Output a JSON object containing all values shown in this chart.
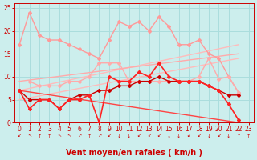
{
  "bg_color": "#cceeed",
  "grid_color": "#aadddd",
  "xlabel": "Vent moyen/en rafales ( km/h )",
  "xlim": [
    -0.5,
    23.5
  ],
  "ylim": [
    0,
    26
  ],
  "yticks": [
    0,
    5,
    10,
    15,
    20,
    25
  ],
  "xticks": [
    0,
    1,
    2,
    3,
    4,
    5,
    6,
    7,
    8,
    9,
    10,
    11,
    12,
    13,
    14,
    15,
    16,
    17,
    18,
    19,
    20,
    21,
    22,
    23
  ],
  "lines": [
    {
      "comment": "Light pink top jagged line with diamonds - rafales max",
      "x": [
        0,
        1,
        2,
        3,
        4,
        5,
        6,
        7,
        8,
        9,
        10,
        11,
        12,
        13,
        14,
        15,
        16,
        17,
        18,
        19,
        20,
        21,
        22
      ],
      "y": [
        17,
        24,
        19,
        18,
        18,
        17,
        16,
        15,
        14,
        18,
        22,
        21,
        22,
        20,
        23,
        21,
        17,
        17,
        18,
        15,
        14,
        10,
        6.5
      ],
      "color": "#ff9999",
      "lw": 1.0,
      "marker": "D",
      "ms": 2.0,
      "zorder": 3
    },
    {
      "comment": "Medium pink jagged line with diamonds - rafales moy upper",
      "x": [
        1,
        2,
        3,
        4,
        5,
        6,
        7,
        8,
        9,
        10,
        11,
        12,
        13,
        14,
        15,
        16,
        17,
        18,
        19,
        20,
        21,
        22
      ],
      "y": [
        9,
        8,
        8,
        8,
        9,
        9,
        10,
        13,
        13,
        13,
        9,
        9,
        9,
        9,
        9,
        9,
        9,
        10,
        14,
        9.5,
        10,
        6.5
      ],
      "color": "#ffaaaa",
      "lw": 1.0,
      "marker": "D",
      "ms": 2.0,
      "zorder": 3
    },
    {
      "comment": "Bright red jagged line with diamonds - vent moyen",
      "x": [
        0,
        1,
        2,
        3,
        4,
        5,
        6,
        7,
        8,
        9,
        10,
        11,
        12,
        13,
        14,
        15,
        16,
        17,
        18,
        19,
        20,
        21,
        22
      ],
      "y": [
        7,
        3,
        5,
        5,
        3,
        5,
        5,
        6,
        0,
        10,
        9,
        9,
        11,
        10,
        13,
        10,
        9,
        9,
        9,
        8,
        7,
        4,
        0.5
      ],
      "color": "#ff2222",
      "lw": 1.2,
      "marker": "D",
      "ms": 2.0,
      "zorder": 4
    },
    {
      "comment": "Dark red lower jagged with diamonds",
      "x": [
        0,
        1,
        2,
        3,
        4,
        5,
        6,
        7,
        8,
        9,
        10,
        11,
        12,
        13,
        14,
        15,
        16,
        17,
        18,
        19,
        20,
        21,
        22
      ],
      "y": [
        7,
        5,
        5,
        5,
        3,
        5,
        6,
        6,
        7,
        7,
        8,
        8,
        9,
        9,
        10,
        9,
        9,
        9,
        9,
        8,
        7,
        6,
        6
      ],
      "color": "#cc0000",
      "lw": 1.0,
      "marker": "D",
      "ms": 2.0,
      "zorder": 3
    },
    {
      "comment": "Light pink straight diagonal trend line upper",
      "x": [
        0,
        22
      ],
      "y": [
        7,
        17
      ],
      "color": "#ffbbbb",
      "lw": 1.0,
      "marker": null,
      "ms": 0,
      "zorder": 2
    },
    {
      "comment": "Light pink straight diagonal trend line lower",
      "x": [
        0,
        22
      ],
      "y": [
        5,
        14
      ],
      "color": "#ffbbbb",
      "lw": 1.0,
      "marker": null,
      "ms": 0,
      "zorder": 2
    },
    {
      "comment": "Red decreasing straight line from 7 to 0",
      "x": [
        0,
        22
      ],
      "y": [
        7,
        0
      ],
      "color": "#ff4444",
      "lw": 1.0,
      "marker": null,
      "ms": 0,
      "zorder": 2
    },
    {
      "comment": "Pink medium straight diagonal",
      "x": [
        0,
        22
      ],
      "y": [
        9,
        15
      ],
      "color": "#ffaaaa",
      "lw": 1.0,
      "marker": null,
      "ms": 0,
      "zorder": 2
    }
  ],
  "arrows": [
    "↙",
    "↖",
    "↑",
    "↑",
    "↖",
    "↖",
    "↗",
    "↑",
    "↗",
    "↙",
    "↓",
    "↓",
    "↙",
    "↙",
    "↙",
    "↓",
    "↓",
    "↙",
    "↙",
    "↓",
    "↙",
    "↓",
    "↑",
    "↑"
  ],
  "tick_label_fontsize": 5.5,
  "xlabel_fontsize": 7,
  "xlabel_color": "#cc0000",
  "tick_color": "#cc0000"
}
